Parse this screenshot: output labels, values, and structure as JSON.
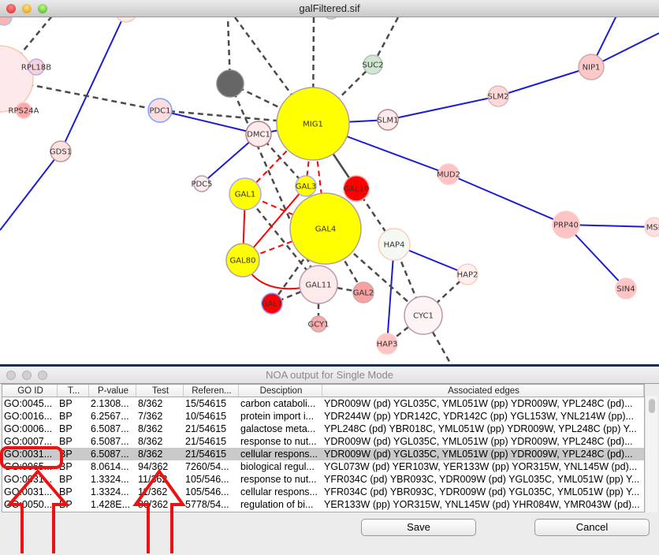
{
  "main_window": {
    "title": "galFiltered.sif"
  },
  "network": {
    "nodes": [
      {
        "id": "big",
        "label": "",
        "fill": "#fde9e9",
        "stroke": "#f6c9b3"
      },
      {
        "id": "tl",
        "label": "",
        "fill": "#f9b6b6",
        "stroke": "#99ccee"
      },
      {
        "id": "top1",
        "label": "",
        "fill": "#fde9e9",
        "stroke": "#f6c9b3"
      },
      {
        "id": "top2",
        "label": "",
        "fill": "#cfe8cf",
        "stroke": "#bbb"
      },
      {
        "id": "RPL18B",
        "label": "RPL18B",
        "fill": "#f5d3dc",
        "stroke": "#c8a8d8"
      },
      {
        "id": "RPS24A",
        "label": "RPS24A",
        "fill": "#fbaaaa",
        "stroke": "#fcc"
      },
      {
        "id": "dark",
        "label": "",
        "fill": "#666666",
        "stroke": "#888"
      },
      {
        "id": "PDC1",
        "label": "PDC1",
        "fill": "#fbdcdf",
        "stroke": "#7aa0ff"
      },
      {
        "id": "DMC1",
        "label": "DMC1",
        "fill": "#fdeaea",
        "stroke": "#b87888"
      },
      {
        "id": "MIG1",
        "label": "MIG1",
        "fill": "#ffff00",
        "stroke": "#b0a0a0"
      },
      {
        "id": "SUC2",
        "label": "SUC2",
        "fill": "#cfe8cf",
        "stroke": "#bbb"
      },
      {
        "id": "SLM1",
        "label": "SLM1",
        "fill": "#fdeaea",
        "stroke": "#b88"
      },
      {
        "id": "SLM2",
        "label": "SLM2",
        "fill": "#fdd8d8",
        "stroke": "#dbb"
      },
      {
        "id": "NIP1",
        "label": "NIP1",
        "fill": "#fcc8c8",
        "stroke": "#caa"
      },
      {
        "id": "MUD2",
        "label": "MUD2",
        "fill": "#fcc4c4",
        "stroke": "#fcc"
      },
      {
        "id": "PRP40",
        "label": "PRP40",
        "fill": "#fcc4c4",
        "stroke": "#fcc"
      },
      {
        "id": "MSL",
        "label": "MSL",
        "fill": "#fde0e0",
        "stroke": "#fcc"
      },
      {
        "id": "SIN4",
        "label": "SIN4",
        "fill": "#fcc4c4",
        "stroke": "#fcc"
      },
      {
        "id": "GDS1",
        "label": "GDS1",
        "fill": "#fde2e2",
        "stroke": "#b99"
      },
      {
        "id": "PDC5",
        "label": "PDC5",
        "fill": "#fdeef2",
        "stroke": "#b9a"
      },
      {
        "id": "GAL1",
        "label": "GAL1",
        "fill": "#ffff00",
        "stroke": "#aaaaff"
      },
      {
        "id": "GAL3",
        "label": "GAL3",
        "fill": "#ffff00",
        "stroke": "#aaaaff"
      },
      {
        "id": "GAL10",
        "label": "GAL10",
        "fill": "#ff0000",
        "stroke": "#f99"
      },
      {
        "id": "GAL4",
        "label": "GAL4",
        "fill": "#ffff00",
        "stroke": "#b0a0a0"
      },
      {
        "id": "HAP4",
        "label": "HAP4",
        "fill": "#f3faf3",
        "stroke": "#fcb"
      },
      {
        "id": "HAP2",
        "label": "HAP2",
        "fill": "#fdf0ee",
        "stroke": "#fcb"
      },
      {
        "id": "GAL80",
        "label": "GAL80",
        "fill": "#ffff00",
        "stroke": "#b0a0a0"
      },
      {
        "id": "GAL11",
        "label": "GAL11",
        "fill": "#fdeaea",
        "stroke": "#b9a"
      },
      {
        "id": "GAL2",
        "label": "GAL2",
        "fill": "#f9a0a0",
        "stroke": "#caa"
      },
      {
        "id": "GAL7",
        "label": "GAL7",
        "fill": "#ff0000",
        "stroke": "#99f"
      },
      {
        "id": "GCY1",
        "label": "GCY1",
        "fill": "#f9aaaa",
        "stroke": "#caa"
      },
      {
        "id": "CYC1",
        "label": "CYC1",
        "fill": "#fdf5f5",
        "stroke": "#b9a"
      },
      {
        "id": "HAP3",
        "label": "HAP3",
        "fill": "#fcc4c4",
        "stroke": "#fcc"
      }
    ],
    "edges": [
      [
        "GDS1",
        "top1",
        "pd"
      ],
      [
        "GDS1",
        "exitBL",
        "pd"
      ],
      [
        "PDC1",
        "DMC1",
        "pd"
      ],
      [
        "DMC1",
        "PDC5",
        "pd"
      ],
      [
        "DMC1",
        "MIG1",
        "pd"
      ],
      [
        "MIG1",
        "SLM1",
        "pd"
      ],
      [
        "SLM1",
        "SLM2",
        "pd"
      ],
      [
        "SLM2",
        "NIP1",
        "pd"
      ],
      [
        "NIP1",
        "exitT",
        "pd"
      ],
      [
        "NIP1",
        "exitR",
        "pd"
      ],
      [
        "MIG1",
        "MUD2",
        "pd"
      ],
      [
        "MUD2",
        "PRP40",
        "pd"
      ],
      [
        "PRP40",
        "MSL",
        "pd"
      ],
      [
        "PRP40",
        "SIN4",
        "pd"
      ],
      [
        "HAP4",
        "HAP2",
        "pd"
      ],
      [
        "HAP4",
        "HAP3",
        "pd"
      ],
      [
        "big",
        "exitTL",
        "pp"
      ],
      [
        "big",
        "PDC1",
        "pp"
      ],
      [
        "PDC1",
        "MIG1",
        "pp"
      ],
      [
        "big",
        "RPL18B",
        "pp"
      ],
      [
        "big",
        "RPS24A",
        "pp"
      ],
      [
        "dark",
        "exitD1",
        "pp"
      ],
      [
        "dark",
        "MIG1",
        "pp"
      ],
      [
        "dark",
        "GAL11",
        "pp"
      ],
      [
        "exitD2",
        "MIG1",
        "pp"
      ],
      [
        "exitD3",
        "MIG1",
        "pp"
      ],
      [
        "SUC2",
        "MIG1",
        "pp"
      ],
      [
        "exitD4",
        "SUC2",
        "pp"
      ],
      [
        "MIG1",
        "GAL10",
        "solid"
      ],
      [
        "GAL10",
        "HAP4",
        "pp"
      ],
      [
        "GAL4",
        "CYC1",
        "pp"
      ],
      [
        "GAL4",
        "GAL2",
        "pp"
      ],
      [
        "GAL4",
        "GAL7",
        "pp"
      ],
      [
        "GAL11",
        "GAL7",
        "pp"
      ],
      [
        "GAL11",
        "GAL2",
        "pp"
      ],
      [
        "GAL11",
        "GCY1",
        "pp"
      ],
      [
        "GAL1",
        "GAL11",
        "pp"
      ],
      [
        "DMC1",
        "GAL3",
        "pp"
      ],
      [
        "HAP4",
        "CYC1",
        "pp"
      ],
      [
        "HAP2",
        "CYC1",
        "pp"
      ],
      [
        "CYC1",
        "HAP3",
        "pp"
      ],
      [
        "CYC1",
        "exitB",
        "pp"
      ],
      [
        "MIG1",
        "GAL1",
        "red-dash"
      ],
      [
        "MIG1",
        "GAL3",
        "red-dash"
      ],
      [
        "MIG1",
        "GAL4",
        "red-dash"
      ],
      [
        "GAL1",
        "GAL4",
        "red-dash"
      ],
      [
        "GAL80",
        "GAL4",
        "red-dash"
      ],
      [
        "GAL1",
        "GAL80",
        "red"
      ],
      [
        "GAL3",
        "GAL80",
        "red"
      ],
      [
        "GAL80",
        "GAL11",
        "red-curve"
      ]
    ],
    "colors": {
      "pd": "#1c1cd6",
      "pp": "#4a4a4a",
      "red": "#ff0000"
    }
  },
  "noa_window": {
    "title": "NOA output for Single Mode"
  },
  "table": {
    "columns": [
      "GO ID",
      "T...",
      "P-value",
      "Test",
      "Referen...",
      "Desciption",
      "Associated edges"
    ],
    "selected_row": 4,
    "rows": [
      [
        "GO:0045...",
        "BP",
        "2.1308...",
        "8/362",
        "15/54615",
        "carbon cataboli...",
        "YDR009W (pd) YGL035C, YML051W (pp) YDR009W, YPL248C (pd)..."
      ],
      [
        "GO:0016...",
        "BP",
        "6.2567...",
        "7/362",
        "10/54615",
        "protein import i...",
        "YDR244W (pp) YDR142C, YDR142C (pp) YGL153W, YNL214W (pp)..."
      ],
      [
        "GO:0006...",
        "BP",
        "6.5087...",
        "8/362",
        "21/54615",
        "galactose meta...",
        "YPL248C (pd) YBR018C, YML051W (pp) YDR009W, YPL248C (pp) Y..."
      ],
      [
        "GO:0007...",
        "BP",
        "6.5087...",
        "8/362",
        "21/54615",
        "response to nut...",
        "YDR009W (pd) YGL035C, YML051W (pp) YDR009W, YPL248C (pd)..."
      ],
      [
        "GO:0031...",
        "BP",
        "6.5087...",
        "8/362",
        "21/54615",
        "cellular respons...",
        "YDR009W (pd) YGL035C, YML051W (pp) YDR009W, YPL248C (pd)..."
      ],
      [
        "GO:0065...",
        "BP",
        "8.0614...",
        "94/362",
        "7260/54...",
        "biological regul...",
        "YGL073W (pd) YER103W, YER133W (pp) YOR315W, YNL145W (pd)..."
      ],
      [
        "GO:0031...",
        "BP",
        "1.3324...",
        "11/362",
        "105/546...",
        "response to nut...",
        "YFR034C (pd) YBR093C, YDR009W (pd) YGL035C, YML051W (pp) Y..."
      ],
      [
        "GO:0031...",
        "BP",
        "1.3324...",
        "11/362",
        "105/546...",
        "cellular respons...",
        "YFR034C (pd) YBR093C, YDR009W (pd) YGL035C, YML051W (pp) Y..."
      ],
      [
        "GO:0050...",
        "BP",
        "1.428E...",
        "80/362",
        "5778/54...",
        "regulation of bi...",
        "YER133W (pp) YOR315W, YNL145W (pd) YHR084W, YMR043W (pd)..."
      ]
    ]
  },
  "buttons": {
    "save": "Save",
    "cancel": "Cancel"
  },
  "annotation_color": "#ee1111"
}
